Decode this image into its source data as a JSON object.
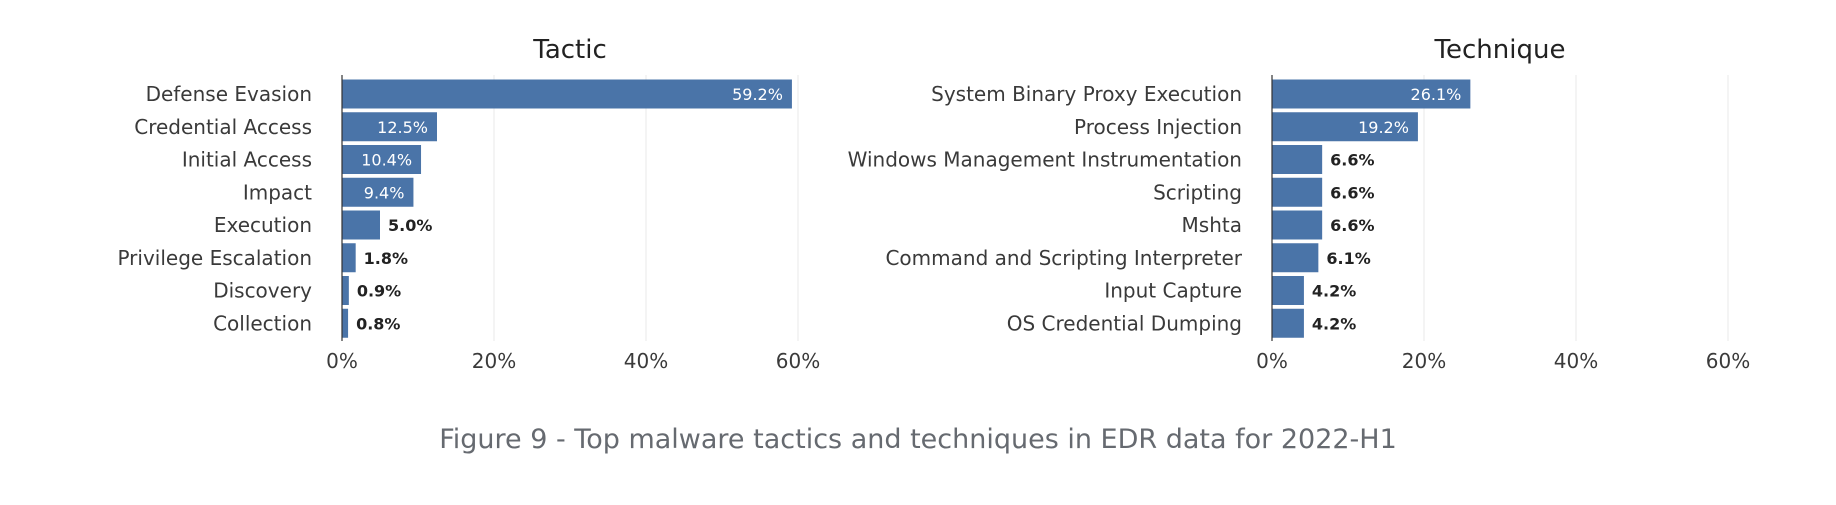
{
  "figure": {
    "caption": "Figure 9 - Top malware tactics and techniques in EDR data for 2022-H1"
  },
  "colors": {
    "bar": "#4a74a8",
    "grid": "#ececec",
    "axis": "#333333",
    "text": "#3a3a3a",
    "label_inside": "#ffffff",
    "label_outside": "#222222"
  },
  "chart_data": [
    {
      "type": "bar",
      "orientation": "horizontal",
      "title": "Tactic",
      "xlabel": "",
      "ylabel": "",
      "xlim": [
        0,
        60
      ],
      "xticks": [
        0,
        20,
        40,
        60
      ],
      "xtick_labels": [
        "0%",
        "20%",
        "40%",
        "60%"
      ],
      "grid": true,
      "categories": [
        "Defense Evasion",
        "Credential Access",
        "Initial Access",
        "Impact",
        "Execution",
        "Privilege Escalation",
        "Discovery",
        "Collection"
      ],
      "values": [
        59.2,
        12.5,
        10.4,
        9.4,
        5.0,
        1.8,
        0.9,
        0.8
      ],
      "value_labels": [
        "59.2%",
        "12.5%",
        "10.4%",
        "9.4%",
        "5.0%",
        "1.8%",
        "0.9%",
        "0.8%"
      ]
    },
    {
      "type": "bar",
      "orientation": "horizontal",
      "title": "Technique",
      "xlabel": "",
      "ylabel": "",
      "xlim": [
        0,
        60
      ],
      "xticks": [
        0,
        20,
        40,
        60
      ],
      "xtick_labels": [
        "0%",
        "20%",
        "40%",
        "60%"
      ],
      "grid": true,
      "categories": [
        "System Binary Proxy Execution",
        "Process Injection",
        "Windows Management Instrumentation",
        "Scripting",
        "Mshta",
        "Command and Scripting Interpreter",
        "Input Capture",
        "OS Credential Dumping"
      ],
      "values": [
        26.1,
        19.2,
        6.6,
        6.6,
        6.6,
        6.1,
        4.2,
        4.2
      ],
      "value_labels": [
        "26.1%",
        "19.2%",
        "6.6%",
        "6.6%",
        "6.6%",
        "6.1%",
        "4.2%",
        "4.2%"
      ]
    }
  ]
}
